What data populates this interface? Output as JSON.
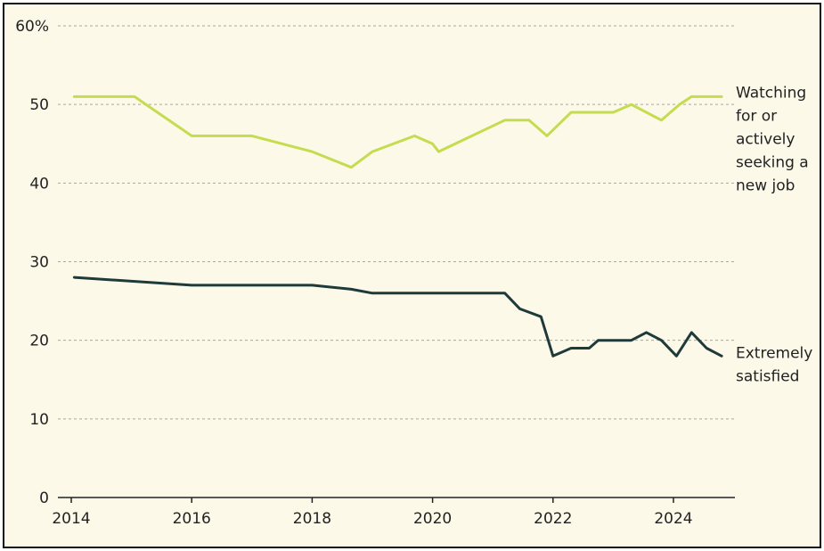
{
  "chart_data": {
    "type": "line",
    "title": "",
    "xlabel": "",
    "ylabel": "",
    "xlim": [
      2014,
      2025
    ],
    "ylim": [
      0,
      60
    ],
    "x_ticks": [
      "2014",
      "2016",
      "2018",
      "2020",
      "2022",
      "2024"
    ],
    "y_ticks": [
      "0",
      "10",
      "20",
      "30",
      "40",
      "50",
      "60%"
    ],
    "grid": true,
    "series": [
      {
        "name": "Watching for or actively seeking a new job",
        "label_lines": [
          "Watching",
          "for or",
          "actively",
          "seeking a",
          "new job"
        ],
        "color": "#c5dc50",
        "x": [
          2014.05,
          2015.05,
          2016.0,
          2017.0,
          2018.0,
          2018.65,
          2019.0,
          2019.7,
          2020.0,
          2020.1,
          2021.2,
          2021.6,
          2021.9,
          2022.3,
          2022.6,
          2023.0,
          2023.3,
          2023.8,
          2024.1,
          2024.3,
          2024.5,
          2024.8
        ],
        "values": [
          51,
          51,
          46,
          46,
          44,
          42,
          44,
          46,
          45,
          44,
          48,
          48,
          46,
          49,
          49,
          49,
          50,
          48,
          50,
          51,
          51,
          51
        ]
      },
      {
        "name": "Extremely satisfied",
        "label_lines": [
          "Extremely",
          "satisfied"
        ],
        "color": "#1f3a3a",
        "x": [
          2014.05,
          2016.0,
          2018.0,
          2018.65,
          2019.0,
          2021.2,
          2021.45,
          2021.8,
          2022.0,
          2022.3,
          2022.6,
          2022.75,
          2023.0,
          2023.3,
          2023.55,
          2023.8,
          2024.05,
          2024.3,
          2024.55,
          2024.8
        ],
        "values": [
          28,
          27,
          27,
          26.5,
          26,
          26,
          24,
          23,
          18,
          19,
          19,
          20,
          20,
          20,
          21,
          20,
          18,
          21,
          19,
          18
        ]
      }
    ]
  }
}
